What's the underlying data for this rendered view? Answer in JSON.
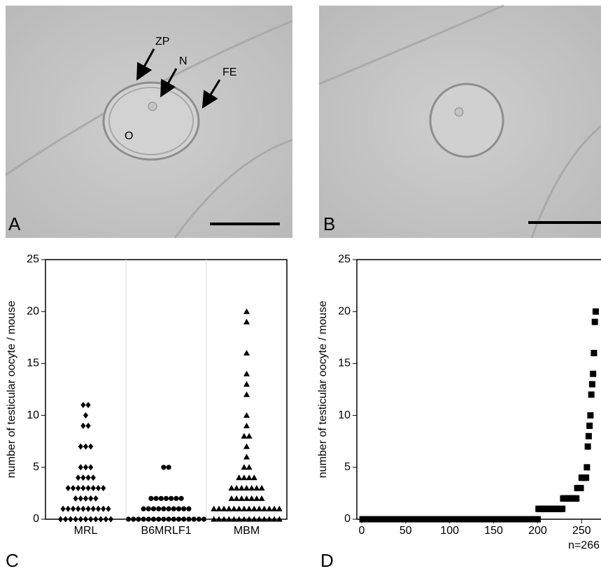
{
  "figure": {
    "panel_a": {
      "label": "A",
      "annotations": [
        "ZP",
        "N",
        "FE",
        "O"
      ]
    },
    "panel_b": {
      "label": "B"
    },
    "panel_c": {
      "label": "C"
    },
    "panel_d": {
      "label": "D"
    }
  },
  "chart_data": [
    {
      "type": "strip",
      "y_label": "number of testicular oocyte / mouse",
      "categories": [
        "MRL",
        "B6MRLF1",
        "MBM"
      ],
      "markers": [
        "diamond",
        "circle",
        "triangle"
      ],
      "color": "#000000",
      "points": [
        [
          11,
          11,
          10,
          9,
          9,
          7,
          7,
          7,
          5,
          5,
          5,
          4,
          4,
          4,
          4,
          3,
          3,
          3,
          3,
          3,
          3,
          3,
          3,
          2,
          2,
          2,
          2,
          2,
          1,
          1,
          1,
          1,
          1,
          1,
          1,
          1,
          1,
          1,
          0,
          0,
          0,
          0,
          0,
          0,
          0,
          0,
          0,
          0,
          0
        ],
        [
          5,
          5,
          2,
          2,
          2,
          2,
          2,
          2,
          2,
          1,
          1,
          1,
          1,
          1,
          1,
          1,
          1,
          1,
          1,
          0,
          0,
          0,
          0,
          0,
          0,
          0,
          0,
          0,
          0,
          0,
          0,
          0,
          0,
          0,
          0
        ],
        [
          20,
          19,
          16,
          14,
          13,
          12,
          10,
          9,
          8,
          8,
          7,
          6,
          5,
          5,
          4,
          4,
          4,
          4,
          3,
          3,
          3,
          3,
          3,
          3,
          3,
          2,
          2,
          2,
          2,
          2,
          2,
          2,
          1,
          1,
          1,
          1,
          1,
          1,
          1,
          1,
          1,
          1,
          1,
          1,
          1,
          1,
          0,
          0,
          0,
          0,
          0,
          0,
          0,
          0,
          0,
          0,
          0,
          0,
          0,
          0
        ]
      ],
      "ylim": [
        0,
        25
      ],
      "yticks": [
        0,
        5,
        10,
        15,
        20,
        25
      ]
    },
    {
      "type": "scatter",
      "y_label": "number of testicular oocyte / mouse",
      "annotation": "n=266",
      "color": "#000000",
      "marker": "square",
      "x": [
        1,
        2,
        3,
        4,
        5,
        6,
        7,
        8,
        9,
        10,
        11,
        12,
        13,
        14,
        15,
        16,
        17,
        18,
        19,
        20,
        21,
        22,
        23,
        24,
        25,
        26,
        27,
        28,
        29,
        30,
        31,
        32,
        33,
        34,
        35,
        36,
        37,
        38,
        39,
        40,
        41,
        42,
        43,
        44,
        45,
        46,
        47,
        48,
        49,
        50,
        51,
        52,
        53,
        54,
        55,
        56,
        57,
        58,
        59,
        60,
        61,
        62,
        63,
        64,
        65,
        66,
        67,
        68,
        69,
        70,
        71,
        72,
        73,
        74,
        75,
        76,
        77,
        78,
        79,
        80,
        81,
        82,
        83,
        84,
        85,
        86,
        87,
        88,
        89,
        90,
        91,
        92,
        93,
        94,
        95,
        96,
        97,
        98,
        99,
        100,
        101,
        102,
        103,
        104,
        105,
        106,
        107,
        108,
        109,
        110,
        111,
        112,
        113,
        114,
        115,
        116,
        117,
        118,
        119,
        120,
        121,
        122,
        123,
        124,
        125,
        126,
        127,
        128,
        129,
        130,
        131,
        132,
        133,
        134,
        135,
        136,
        137,
        138,
        139,
        140,
        141,
        142,
        143,
        144,
        145,
        146,
        147,
        148,
        149,
        150,
        151,
        152,
        153,
        154,
        155,
        156,
        157,
        158,
        159,
        160,
        161,
        162,
        163,
        164,
        165,
        166,
        167,
        168,
        169,
        170,
        171,
        172,
        173,
        174,
        175,
        176,
        177,
        178,
        179,
        180,
        181,
        182,
        183,
        184,
        185,
        186,
        187,
        188,
        189,
        190,
        191,
        192,
        193,
        194,
        195,
        196,
        197,
        198,
        199,
        200,
        201,
        202,
        203,
        204,
        205,
        206,
        207,
        208,
        209,
        210,
        211,
        212,
        213,
        214,
        215,
        216,
        217,
        218,
        219,
        220,
        221,
        222,
        223,
        224,
        225,
        226,
        227,
        228,
        229,
        230,
        231,
        232,
        233,
        234,
        235,
        236,
        237,
        238,
        239,
        240,
        241,
        242,
        243,
        244,
        245,
        246,
        247,
        248,
        249,
        250,
        251,
        252,
        253,
        254,
        255,
        256,
        257,
        258,
        259,
        260,
        261,
        262,
        263,
        264,
        265,
        266
      ],
      "values": [
        0,
        0,
        0,
        0,
        0,
        0,
        0,
        0,
        0,
        0,
        0,
        0,
        0,
        0,
        0,
        0,
        0,
        0,
        0,
        0,
        0,
        0,
        0,
        0,
        0,
        0,
        0,
        0,
        0,
        0,
        0,
        0,
        0,
        0,
        0,
        0,
        0,
        0,
        0,
        0,
        0,
        0,
        0,
        0,
        0,
        0,
        0,
        0,
        0,
        0,
        0,
        0,
        0,
        0,
        0,
        0,
        0,
        0,
        0,
        0,
        0,
        0,
        0,
        0,
        0,
        0,
        0,
        0,
        0,
        0,
        0,
        0,
        0,
        0,
        0,
        0,
        0,
        0,
        0,
        0,
        0,
        0,
        0,
        0,
        0,
        0,
        0,
        0,
        0,
        0,
        0,
        0,
        0,
        0,
        0,
        0,
        0,
        0,
        0,
        0,
        0,
        0,
        0,
        0,
        0,
        0,
        0,
        0,
        0,
        0,
        0,
        0,
        0,
        0,
        0,
        0,
        0,
        0,
        0,
        0,
        0,
        0,
        0,
        0,
        0,
        0,
        0,
        0,
        0,
        0,
        0,
        0,
        0,
        0,
        0,
        0,
        0,
        0,
        0,
        0,
        0,
        0,
        0,
        0,
        0,
        0,
        0,
        0,
        0,
        0,
        0,
        0,
        0,
        0,
        0,
        0,
        0,
        0,
        0,
        0,
        0,
        0,
        0,
        0,
        0,
        0,
        0,
        0,
        0,
        0,
        0,
        0,
        0,
        0,
        0,
        0,
        0,
        0,
        0,
        0,
        0,
        0,
        0,
        0,
        0,
        0,
        0,
        0,
        0,
        0,
        0,
        0,
        0,
        0,
        0,
        0,
        0,
        0,
        0,
        0,
        1,
        1,
        1,
        1,
        1,
        1,
        1,
        1,
        1,
        1,
        1,
        1,
        1,
        1,
        1,
        1,
        1,
        1,
        1,
        1,
        1,
        1,
        1,
        1,
        1,
        1,
        1,
        1,
        2,
        2,
        2,
        2,
        2,
        2,
        2,
        2,
        2,
        2,
        2,
        2,
        2,
        2,
        2,
        2,
        3,
        3,
        3,
        3,
        3,
        4,
        4,
        4,
        4,
        4,
        4,
        5,
        7,
        8,
        9,
        10,
        12,
        13,
        14,
        16,
        19,
        20
      ],
      "xlim": [
        -5.5,
        272
      ],
      "xticks": [
        0,
        50,
        100,
        150,
        200,
        250
      ],
      "ylim": [
        0,
        25
      ],
      "yticks": [
        0,
        5,
        10,
        15,
        20,
        25
      ]
    }
  ]
}
